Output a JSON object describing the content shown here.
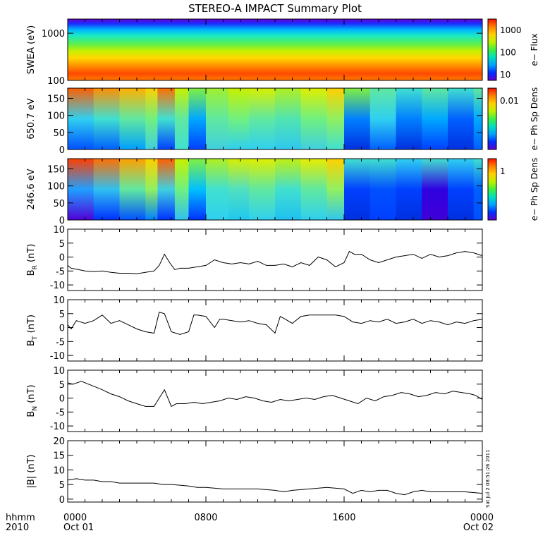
{
  "title": "STEREO-A IMPACT Summary Plot",
  "x_axis": {
    "row1_prefix": "hhmm",
    "row2_prefix": "2010",
    "ticks": [
      {
        "hour": 0,
        "label": "0000",
        "date": "Oct 01"
      },
      {
        "hour": 8,
        "label": "0800",
        "date": ""
      },
      {
        "hour": 16,
        "label": "1600",
        "date": ""
      },
      {
        "hour": 24,
        "label": "0000",
        "date": "Oct 02"
      }
    ],
    "range_hours": [
      0,
      24
    ]
  },
  "timestamp": "Sat Jul  2 08:51:26 2011",
  "chart_data": [
    {
      "type": "heatmap",
      "name": "swea",
      "ylabel": "SWEA (eV)",
      "yscale": "log",
      "ylim": [
        100,
        2000
      ],
      "yticks": [
        "100",
        "1000"
      ],
      "colorbar": {
        "label": "e− Flux",
        "ticks": [
          "10",
          "100",
          "1000"
        ]
      },
      "bands": [
        {
          "y": 2000,
          "color": "#6a00d8"
        },
        {
          "y": 1600,
          "color": "#1a2cff"
        },
        {
          "y": 1200,
          "color": "#00b4ff"
        },
        {
          "y": 900,
          "color": "#18e8c8"
        },
        {
          "y": 600,
          "color": "#58f050"
        },
        {
          "y": 420,
          "color": "#c8f000"
        },
        {
          "y": 300,
          "color": "#ffd800"
        },
        {
          "y": 200,
          "color": "#ff8c00"
        },
        {
          "y": 140,
          "color": "#ff4a00"
        },
        {
          "y": 100,
          "color": "#ff7a00"
        }
      ]
    },
    {
      "type": "heatmap",
      "name": "pad650",
      "ylabel": "650.7 eV",
      "ylim": [
        0,
        180
      ],
      "yticks": [
        "0",
        "50",
        "100",
        "150"
      ],
      "colorbar": {
        "label": "e− Ph Sp Dens",
        "ticks": [
          "0.01"
        ]
      },
      "time_hours": [
        0,
        1.5,
        3,
        4.5,
        5.2,
        6.2,
        7,
        8,
        9.3,
        10.5,
        12,
        13.5,
        15,
        16,
        17.5,
        19,
        20.5,
        22,
        23.5
      ],
      "top_color": [
        "#ff6000",
        "#ff9000",
        "#ffb000",
        "#ffd000",
        "#ff7000",
        "#c8f000",
        "#80f040",
        "#a0f030",
        "#c8f000",
        "#d8ef00",
        "#b0f020",
        "#e0ee00",
        "#ffd000",
        "#80f040",
        "#60e8a0",
        "#40e0d0",
        "#60e8a0",
        "#40e0d0",
        "#60e8a0"
      ],
      "mid_color": [
        "#30d0f0",
        "#40e0d0",
        "#60e8a0",
        "#70f080",
        "#40e0d0",
        "#60e8a0",
        "#00a8ff",
        "#60e8a0",
        "#70f080",
        "#60e8a0",
        "#50e4b0",
        "#70f080",
        "#90f060",
        "#0080ff",
        "#30d0f0",
        "#0080ff",
        "#00a8ff",
        "#0060ff",
        "#00a8ff"
      ],
      "bottom_color": [
        "#0050ff",
        "#0060ff",
        "#00a0ff",
        "#40d0e0",
        "#0040ff",
        "#40e0d0",
        "#0040ff",
        "#40d0e0",
        "#30d0f0",
        "#30d0f0",
        "#30c8f0",
        "#40d0e0",
        "#40e0d0",
        "#0030e0",
        "#0060ff",
        "#0030e0",
        "#0040ff",
        "#0030e0",
        "#0060ff"
      ]
    },
    {
      "type": "heatmap",
      "name": "pad246",
      "ylabel": "246.6 eV",
      "ylim": [
        0,
        180
      ],
      "yticks": [
        "0",
        "50",
        "100",
        "150"
      ],
      "colorbar": {
        "label": "e− Ph Sp Dens",
        "ticks": [
          "1"
        ]
      },
      "time_hours": [
        0,
        1.5,
        3,
        4.5,
        5.2,
        6.2,
        7,
        8,
        9.3,
        10.5,
        12,
        13.5,
        15,
        16,
        17.5,
        19,
        20.5,
        22,
        23.5
      ],
      "top_color": [
        "#ff4000",
        "#ff7000",
        "#ffa000",
        "#ffd000",
        "#ff6000",
        "#c8f000",
        "#80f040",
        "#b0f020",
        "#d8ef00",
        "#e0ee00",
        "#c0f010",
        "#e8ec00",
        "#ffd000",
        "#40e0d0",
        "#40e0d0",
        "#30d0f0",
        "#40e0d0",
        "#30d0f0",
        "#40e0d0"
      ],
      "mid_color": [
        "#20a0ff",
        "#30c0f0",
        "#60e8a0",
        "#90f060",
        "#40d0e0",
        "#70f080",
        "#00c0ff",
        "#40e0d0",
        "#50e0c0",
        "#60e8a0",
        "#40e0d0",
        "#60e8a0",
        "#90f060",
        "#0040ff",
        "#0050ff",
        "#0040ff",
        "#3000e0",
        "#0040ff",
        "#0060ff"
      ],
      "bottom_color": [
        "#5000d8",
        "#0030ff",
        "#0050ff",
        "#0080ff",
        "#0030ff",
        "#30c0f0",
        "#0030ff",
        "#30d0f0",
        "#20c8f0",
        "#30d0f0",
        "#20c0f0",
        "#30d0f0",
        "#30c8f0",
        "#0030e0",
        "#0040ff",
        "#0030e0",
        "#4000d8",
        "#0030e0",
        "#0050ff"
      ]
    },
    {
      "type": "line",
      "name": "br",
      "ylabel": "B_R (nT)",
      "ylim": [
        -12,
        10
      ],
      "yticks": [
        "-10",
        "-5",
        "0",
        "5",
        "10"
      ],
      "x": [
        0,
        0.2,
        0.6,
        1,
        1.5,
        2,
        2.5,
        3,
        3.5,
        4,
        4.5,
        5,
        5.3,
        5.6,
        5.9,
        6.2,
        6.5,
        7,
        7.5,
        8,
        8.5,
        9,
        9.5,
        10,
        10.5,
        11,
        11.5,
        12,
        12.5,
        13,
        13.5,
        14,
        14.5,
        15,
        15.5,
        16,
        16.3,
        16.6,
        17,
        17.5,
        18,
        18.5,
        19,
        19.5,
        20,
        20.5,
        21,
        21.5,
        22,
        22.5,
        23,
        23.5,
        24
      ],
      "y": [
        -3,
        -4,
        -4.5,
        -5,
        -5.2,
        -5,
        -5.5,
        -5.8,
        -5.8,
        -6,
        -5.5,
        -5,
        -3,
        1,
        -2,
        -4.5,
        -4,
        -4,
        -3.5,
        -3,
        -1,
        -2,
        -2.5,
        -2,
        -2.5,
        -1.5,
        -3,
        -3,
        -2.5,
        -3.5,
        -2,
        -3,
        0,
        -1,
        -3.5,
        -2,
        2,
        1,
        1,
        -1,
        -2,
        -1,
        0,
        0.5,
        1,
        -0.5,
        1,
        0,
        0.5,
        1.5,
        2,
        1.5,
        0.5
      ]
    },
    {
      "type": "line",
      "name": "bt",
      "ylabel": "B_T (nT)",
      "ylim": [
        -12,
        10
      ],
      "yticks": [
        "-10",
        "-5",
        "0",
        "5",
        "10"
      ],
      "x": [
        0,
        0.2,
        0.5,
        1,
        1.5,
        2,
        2.5,
        3,
        3.5,
        4,
        4.5,
        5,
        5.3,
        5.6,
        6,
        6.5,
        7,
        7.3,
        7.5,
        8,
        8.5,
        8.8,
        9,
        9.5,
        10,
        10.5,
        11,
        11.5,
        12,
        12.3,
        12.6,
        13,
        13.5,
        14,
        14.5,
        15,
        15.5,
        16,
        16.5,
        17,
        17.5,
        18,
        18.5,
        19,
        19.5,
        20,
        20.5,
        21,
        21.5,
        22,
        22.5,
        23,
        23.5,
        24
      ],
      "y": [
        1,
        -0.5,
        2.5,
        1.5,
        2.5,
        4.5,
        1.5,
        2.5,
        1,
        -0.5,
        -1.5,
        -2,
        5.5,
        5,
        -1.5,
        -2.5,
        -1.5,
        4.5,
        4.5,
        4,
        0,
        3,
        3,
        2.5,
        2,
        2.5,
        1.5,
        1,
        -2,
        4,
        3,
        1.5,
        4,
        4.5,
        4.5,
        4.5,
        4.5,
        4,
        2,
        1.5,
        2.5,
        2,
        3,
        1.5,
        2,
        3,
        1.5,
        2.5,
        2,
        1,
        2,
        1.5,
        2.5,
        3
      ]
    },
    {
      "type": "line",
      "name": "bn",
      "ylabel": "B_N (nT)",
      "ylim": [
        -12,
        10
      ],
      "yticks": [
        "-10",
        "-5",
        "0",
        "5",
        "10"
      ],
      "x": [
        0,
        0.3,
        0.8,
        1.2,
        1.6,
        2,
        2.5,
        3,
        3.5,
        4,
        4.5,
        5,
        5.3,
        5.6,
        6,
        6.3,
        6.8,
        7.3,
        7.8,
        8.3,
        8.8,
        9.3,
        9.8,
        10.3,
        10.8,
        11.3,
        11.8,
        12.3,
        12.8,
        13.3,
        13.8,
        14.3,
        14.8,
        15.3,
        15.8,
        16.3,
        16.8,
        17.3,
        17.8,
        18.3,
        18.8,
        19.3,
        19.8,
        20.3,
        20.8,
        21.3,
        21.8,
        22.3,
        22.8,
        23.3,
        23.6,
        24
      ],
      "y": [
        5.5,
        5,
        6,
        5,
        4,
        3,
        1.5,
        0.5,
        -1,
        -2,
        -3,
        -3,
        0,
        3,
        -3,
        -2,
        -2,
        -1.5,
        -2,
        -1.5,
        -1,
        0,
        -0.5,
        0.5,
        0,
        -1,
        -1.5,
        -0.5,
        -1,
        -0.5,
        0,
        -0.5,
        0.5,
        1,
        0,
        -1,
        -2,
        0,
        -1,
        0.5,
        1,
        2,
        1.5,
        0.5,
        1,
        2,
        1.5,
        2.5,
        2,
        1.5,
        1,
        -0.5
      ]
    },
    {
      "type": "line",
      "name": "bmag",
      "ylabel": "|B| (nT)",
      "ylim": [
        -1,
        20
      ],
      "yticks": [
        "0",
        "5",
        "10",
        "15",
        "20"
      ],
      "x": [
        0,
        0.5,
        1,
        1.5,
        2,
        2.5,
        3,
        4,
        5,
        5.5,
        6,
        7,
        7.5,
        8,
        9,
        10,
        11,
        12,
        12.5,
        13,
        14,
        15,
        16,
        16.5,
        17,
        17.5,
        18,
        18.5,
        19,
        19.5,
        20,
        20.5,
        21,
        22,
        23,
        24
      ],
      "y": [
        6.5,
        7,
        6.5,
        6.5,
        6,
        6,
        5.5,
        5.5,
        5.5,
        5,
        5,
        4.5,
        4,
        4,
        3.5,
        3.5,
        3.5,
        3,
        2.5,
        3,
        3.5,
        4,
        3.5,
        2,
        3,
        2.5,
        3,
        3,
        2,
        1.5,
        2.5,
        3,
        2.5,
        2.5,
        2.5,
        2
      ]
    }
  ]
}
